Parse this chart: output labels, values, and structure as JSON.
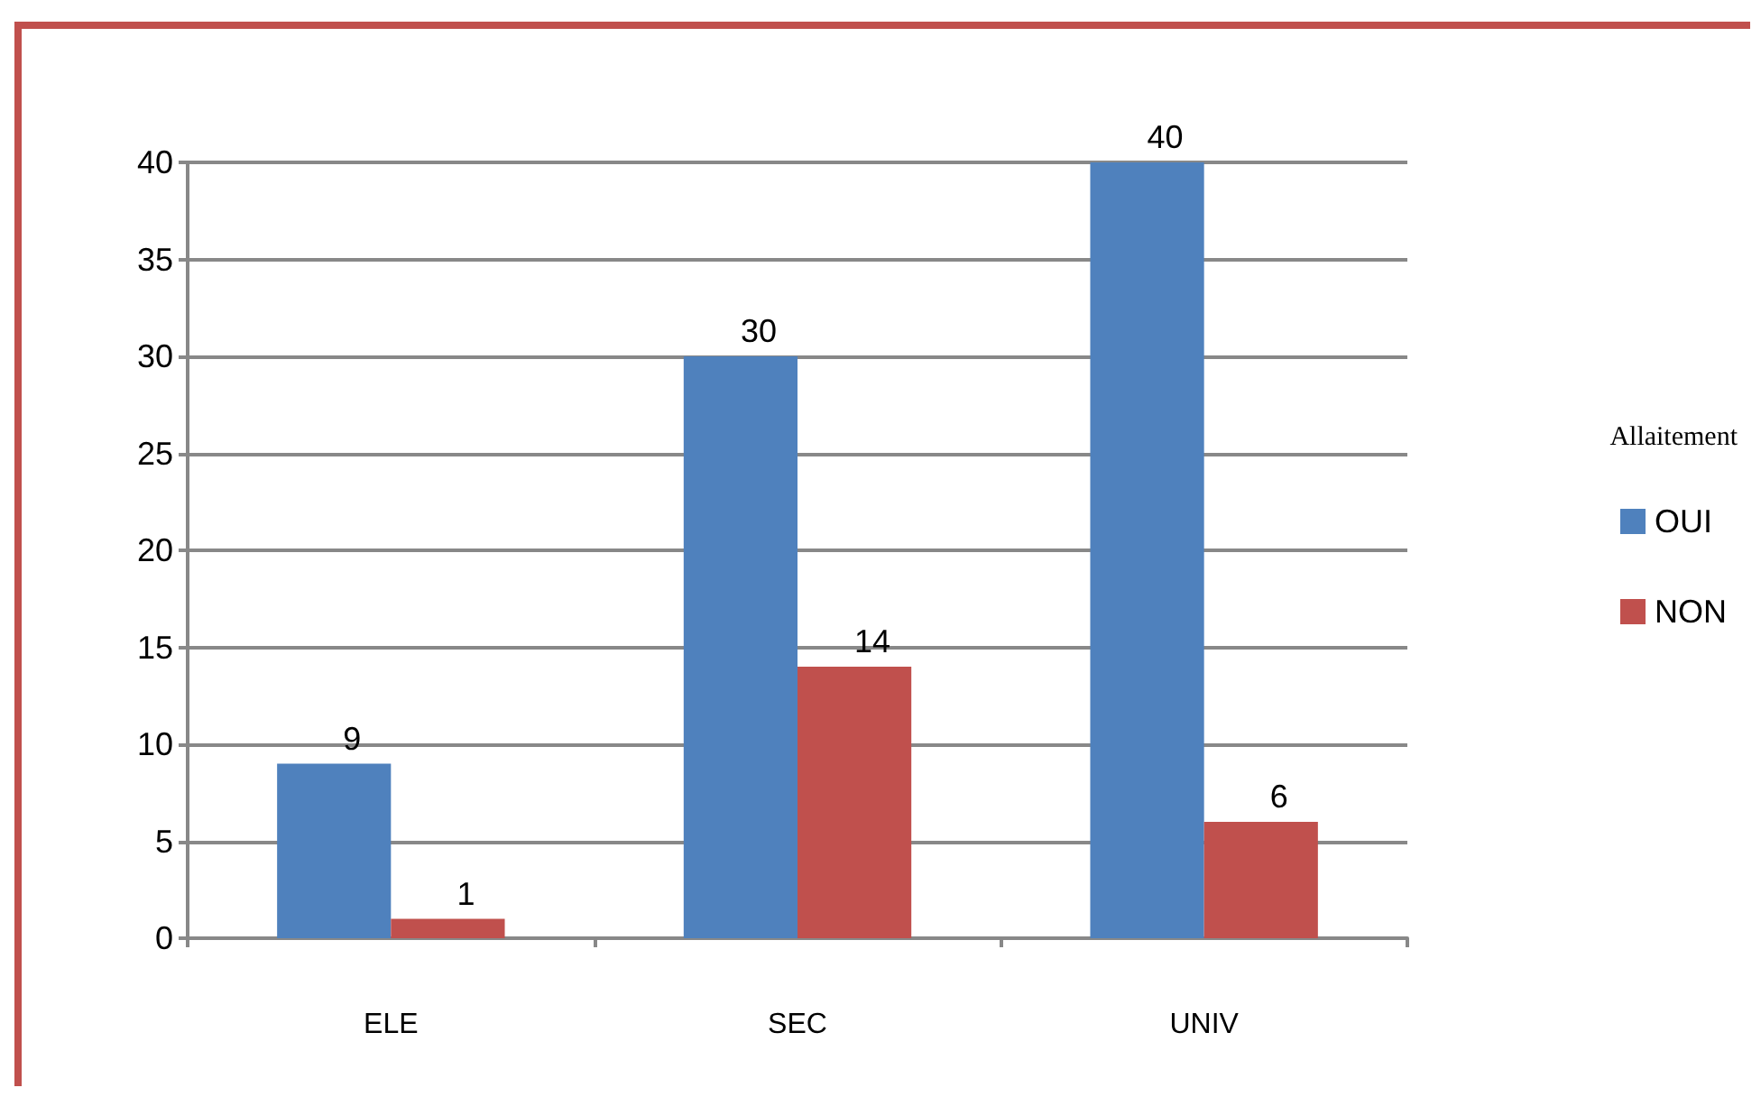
{
  "chart_data": {
    "type": "bar",
    "categories": [
      "ELE",
      "SEC",
      "UNIV"
    ],
    "series": [
      {
        "name": "OUI",
        "color": "#4f81bd",
        "values": [
          9,
          30,
          40
        ]
      },
      {
        "name": "NON",
        "color": "#c0504d",
        "values": [
          1,
          14,
          6
        ]
      }
    ],
    "ylim": [
      0,
      40
    ],
    "yticks": [
      0,
      5,
      10,
      15,
      20,
      25,
      30,
      35,
      40
    ],
    "grid": "y",
    "legend": "right",
    "legend_title": "Allaitement",
    "data_labels": true
  }
}
